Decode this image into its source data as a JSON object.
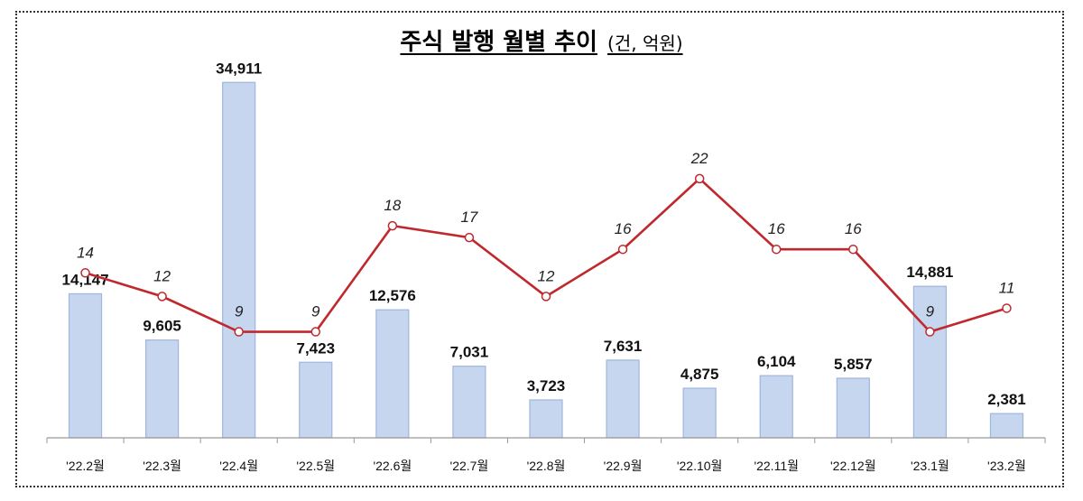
{
  "title": "주식 발행 월별 추이",
  "title_unit": "(건, 억원)",
  "chart_data": {
    "type": "bar",
    "categories": [
      "'22.2월",
      "'22.3월",
      "'22.4월",
      "'22.5월",
      "'22.6월",
      "'22.7월",
      "'22.8월",
      "'22.9월",
      "'22.10월",
      "'22.11월",
      "'22.12월",
      "'23.1월",
      "'23.2월"
    ],
    "series": [
      {
        "type": "bar",
        "values": [
          14147,
          9605,
          34911,
          7423,
          12576,
          7031,
          3723,
          7631,
          4875,
          6104,
          5857,
          14881,
          2381
        ],
        "labels": [
          "14,147",
          "9,605",
          "34,911",
          "7,423",
          "12,576",
          "7,031",
          "3,723",
          "7,631",
          "4,875",
          "6,104",
          "5,857",
          "14,881",
          "2,381"
        ],
        "color": "#c6d6ee"
      },
      {
        "type": "line",
        "values": [
          14,
          12,
          9,
          9,
          18,
          17,
          12,
          16,
          22,
          16,
          16,
          9,
          11
        ],
        "labels": [
          "14",
          "12",
          "9",
          "9",
          "18",
          "17",
          "12",
          "16",
          "22",
          "16",
          "16",
          "9",
          "11"
        ],
        "color": "#c0282d"
      }
    ],
    "bar_range": [
      0,
      36800
    ],
    "line_range": [
      0,
      31.8
    ],
    "grid": false,
    "legend": "none"
  }
}
